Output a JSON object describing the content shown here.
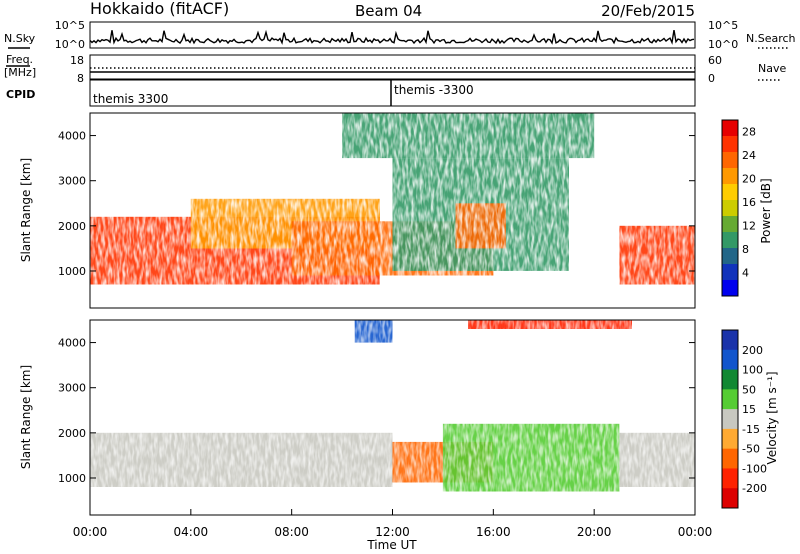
{
  "header": {
    "station": "Hokkaido (fitACF)",
    "beam": "Beam 04",
    "date": "20/Feb/2015"
  },
  "top_panels": {
    "nsky_label": "N.Sky",
    "nsky_ticks": [
      "10^5",
      "10^0"
    ],
    "nsearch_label": "N.Search",
    "nsearch_ticks": [
      "10^5",
      "10^0"
    ],
    "freq_label": "Freq.",
    "freq_unit": "[MHz]",
    "freq_ticks": [
      "18",
      "8"
    ],
    "nave_label": "Nave",
    "nave_ticks": [
      "60",
      "0"
    ],
    "cpid_label": "CPID",
    "cpid_segments": [
      "themis 3300",
      "themis -3300"
    ]
  },
  "power_colorbar": {
    "label": "Power [dB]",
    "ticks": [
      "28",
      "24",
      "20",
      "16",
      "12",
      "8",
      "4"
    ],
    "colors": [
      "#e60000",
      "#ff3300",
      "#ff6600",
      "#ff9900",
      "#ffcc00",
      "#cccc00",
      "#66aa33",
      "#339966",
      "#226688",
      "#1133bb",
      "#0000ee"
    ]
  },
  "velocity_colorbar": {
    "label": "Velocity [m s⁻¹]",
    "ticks": [
      "200",
      "100",
      "50",
      "15",
      "-15",
      "-50",
      "-100",
      "-200"
    ],
    "colors": [
      "#1a33aa",
      "#1155cc",
      "#118833",
      "#55cc33",
      "#c8c8c0",
      "#ffaa33",
      "#ff6600",
      "#ff2200",
      "#dd0000"
    ]
  },
  "axes": {
    "ylabel": "Slant Range [km]",
    "xlabel": "Time UT",
    "yticks": [
      "4000",
      "3000",
      "2000",
      "1000"
    ],
    "xticks": [
      "00:00",
      "04:00",
      "08:00",
      "12:00",
      "16:00",
      "20:00",
      "00:00"
    ]
  },
  "chart_data": [
    {
      "type": "heatmap",
      "title": "Power",
      "xlabel": "Time UT",
      "ylabel": "Slant Range [km]",
      "x_range": [
        "00:00",
        "24:00"
      ],
      "ylim": [
        180,
        4500
      ],
      "colorbar": {
        "label": "Power [dB]",
        "range": [
          0,
          30
        ]
      },
      "regions": [
        {
          "t_start": 0.0,
          "t_end": 11.5,
          "r_min": 700,
          "r_max": 2200,
          "value_db": 27
        },
        {
          "t_start": 4.0,
          "t_end": 11.5,
          "r_min": 1500,
          "r_max": 2600,
          "value_db": 20
        },
        {
          "t_start": 8.0,
          "t_end": 16.0,
          "r_min": 900,
          "r_max": 2100,
          "value_db": 24
        },
        {
          "t_start": 12.0,
          "t_end": 19.0,
          "r_min": 1000,
          "r_max": 3500,
          "value_db": 10
        },
        {
          "t_start": 14.5,
          "t_end": 16.5,
          "r_min": 1500,
          "r_max": 2500,
          "value_db": 25
        },
        {
          "t_start": 10.0,
          "t_end": 20.0,
          "r_min": 3500,
          "r_max": 4500,
          "value_db": 8
        },
        {
          "t_start": 21.0,
          "t_end": 24.0,
          "r_min": 700,
          "r_max": 2000,
          "value_db": 27
        }
      ]
    },
    {
      "type": "heatmap",
      "title": "Velocity",
      "xlabel": "Time UT",
      "ylabel": "Slant Range [km]",
      "x_range": [
        "00:00",
        "24:00"
      ],
      "ylim": [
        180,
        4500
      ],
      "colorbar": {
        "label": "Velocity [m s⁻¹]",
        "range": [
          -200,
          200
        ]
      },
      "regions": [
        {
          "t_start": 0.0,
          "t_end": 12.0,
          "r_min": 800,
          "r_max": 2000,
          "value_ms": 0
        },
        {
          "t_start": 12.0,
          "t_end": 16.0,
          "r_min": 900,
          "r_max": 1800,
          "value_ms": -60
        },
        {
          "t_start": 14.0,
          "t_end": 21.0,
          "r_min": 700,
          "r_max": 2200,
          "value_ms": 40
        },
        {
          "t_start": 10.5,
          "t_end": 12.0,
          "r_min": 4000,
          "r_max": 4500,
          "value_ms": 150
        },
        {
          "t_start": 15.0,
          "t_end": 21.5,
          "r_min": 4300,
          "r_max": 4500,
          "value_ms": -200
        },
        {
          "t_start": 21.0,
          "t_end": 24.0,
          "r_min": 800,
          "r_max": 2000,
          "value_ms": 0
        }
      ]
    }
  ]
}
